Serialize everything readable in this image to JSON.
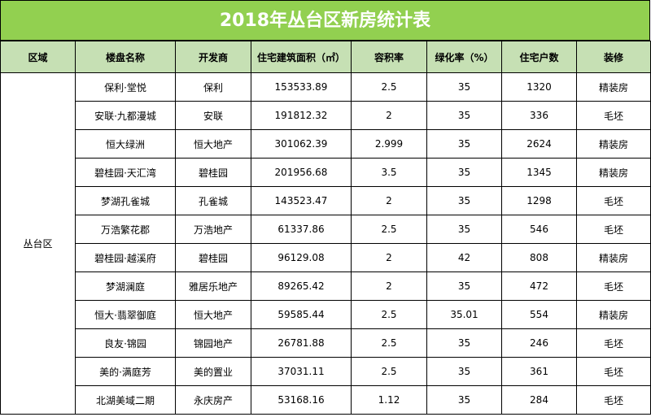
{
  "title": "2018年丛台区新房统计表",
  "accent_color": "#92d050",
  "header_color": "#c6e0b4",
  "columns": [
    "区域",
    "楼盘名称",
    "开发商",
    "住宅建筑面积（㎡）",
    "容积率",
    "绿化率（%）",
    "住宅户数",
    "装修"
  ],
  "region": "丛台区",
  "rows": [
    {
      "name": "保利·堂悦",
      "developer": "保利",
      "area": "153533.89",
      "far": "2.5",
      "green": "35",
      "households": "1320",
      "decoration": "精装房"
    },
    {
      "name": "安联·九都漫城",
      "developer": "安联",
      "area": "191812.32",
      "far": "2",
      "green": "35",
      "households": "336",
      "decoration": "毛坯"
    },
    {
      "name": "恒大绿洲",
      "developer": "恒大地产",
      "area": "301062.39",
      "far": "2.999",
      "green": "35",
      "households": "2624",
      "decoration": "精装房"
    },
    {
      "name": "碧桂园·天汇湾",
      "developer": "碧桂园",
      "area": "201956.68",
      "far": "3.5",
      "green": "35",
      "households": "1345",
      "decoration": "精装房"
    },
    {
      "name": "梦湖孔雀城",
      "developer": "孔雀城",
      "area": "143523.47",
      "far": "2",
      "green": "35",
      "households": "1298",
      "decoration": "毛坯"
    },
    {
      "name": "万浩繁花郡",
      "developer": "万浩地产",
      "area": "61337.86",
      "far": "2.5",
      "green": "35",
      "households": "546",
      "decoration": "毛坯"
    },
    {
      "name": "碧桂园·越溪府",
      "developer": "碧桂园",
      "area": "96129.08",
      "far": "2",
      "green": "42",
      "households": "808",
      "decoration": "精装房"
    },
    {
      "name": "梦湖澜庭",
      "developer": "雅居乐地产",
      "area": "89265.42",
      "far": "2",
      "green": "35",
      "households": "472",
      "decoration": "毛坯"
    },
    {
      "name": "恒大·翡翠御庭",
      "developer": "恒大地产",
      "area": "59585.44",
      "far": "2.5",
      "green": "35.01",
      "households": "554",
      "decoration": "精装房"
    },
    {
      "name": "良友·锦园",
      "developer": "锦园地产",
      "area": "26781.88",
      "far": "2.5",
      "green": "35",
      "households": "246",
      "decoration": "毛坯"
    },
    {
      "name": "美的·满庭芳",
      "developer": "美的置业",
      "area": "37031.11",
      "far": "2.5",
      "green": "35",
      "households": "361",
      "decoration": "毛坯"
    },
    {
      "name": "北湖美域二期",
      "developer": "永庆房产",
      "area": "53168.16",
      "far": "1.12",
      "green": "35",
      "households": "284",
      "decoration": "毛坯"
    }
  ]
}
